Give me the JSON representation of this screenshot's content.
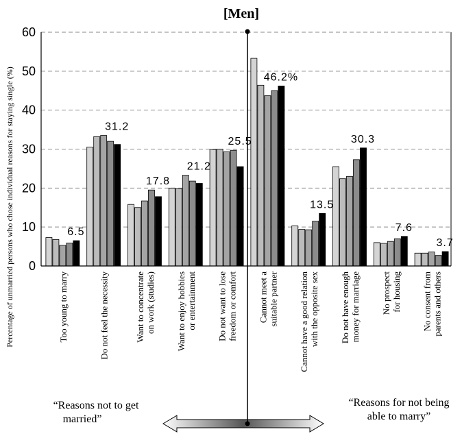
{
  "chart_data": {
    "type": "bar",
    "title": "[Men]",
    "ylabel": "Percentage of unmarried persons who chose individual reasons for staying single (%)",
    "ylim": [
      0,
      60
    ],
    "yticks": [
      "0",
      "10",
      "20",
      "30",
      "40",
      "50",
      "60"
    ],
    "grid": "dashed-horizontal",
    "bar_colors": [
      "#d4d4d4",
      "#bcbcbc",
      "#a4a4a4",
      "#8c8c8c",
      "#000000"
    ],
    "categories": [
      "Too young to marry",
      "Do not feel the necessity",
      "Want to concentrate on work (studies)",
      "Want to enjoy hobbies or entertainment",
      "Do not want to lose freedom or comfort",
      "Cannot meet a suitable partner",
      "Cannot have a good relation with the opposite sex",
      "Do not have enough money for marriage",
      "No prospect for housing",
      "No consent from parents and others"
    ],
    "category_label_lines": [
      [
        "Too young to marry"
      ],
      [
        "Do not feel the necessity"
      ],
      [
        "Want to concentrate",
        "on work (studies)"
      ],
      [
        "Want to enjoy hobbies",
        "or entertainment"
      ],
      [
        "Do not want to lose",
        "freedom or comfort"
      ],
      [
        "Cannot meet a",
        "suitable partner"
      ],
      [
        "Cannot have a good relation",
        "with the opposite sex"
      ],
      [
        "Do not have enough",
        "money for marriage"
      ],
      [
        "No prospect",
        "for housing"
      ],
      [
        "No consent from",
        "parents and others"
      ]
    ],
    "values": [
      [
        7.3,
        6.8,
        5.3,
        5.9,
        6.5
      ],
      [
        30.5,
        33.2,
        33.5,
        32.0,
        31.2
      ],
      [
        15.8,
        15.0,
        16.7,
        19.5,
        17.8
      ],
      [
        20.0,
        19.9,
        23.3,
        21.8,
        21.2
      ],
      [
        29.9,
        30.0,
        29.3,
        29.7,
        25.5
      ],
      [
        53.3,
        46.4,
        43.7,
        45.0,
        46.2
      ],
      [
        10.3,
        9.4,
        9.3,
        11.5,
        13.5
      ],
      [
        25.5,
        22.4,
        23.0,
        27.3,
        30.3
      ],
      [
        6.0,
        5.8,
        6.3,
        7.0,
        7.6
      ],
      [
        3.3,
        3.3,
        3.6,
        2.7,
        3.7
      ]
    ],
    "data_labels": [
      "6.5",
      "31.2",
      "17.8",
      "21.2",
      "25.5",
      "46.2%",
      "13.5",
      "30.3",
      "7.6",
      "3.7"
    ]
  },
  "annotations": {
    "left_note": [
      "“Reasons not to get",
      "married”"
    ],
    "right_note": [
      "“Reasons for not being",
      "able to marry”"
    ]
  }
}
